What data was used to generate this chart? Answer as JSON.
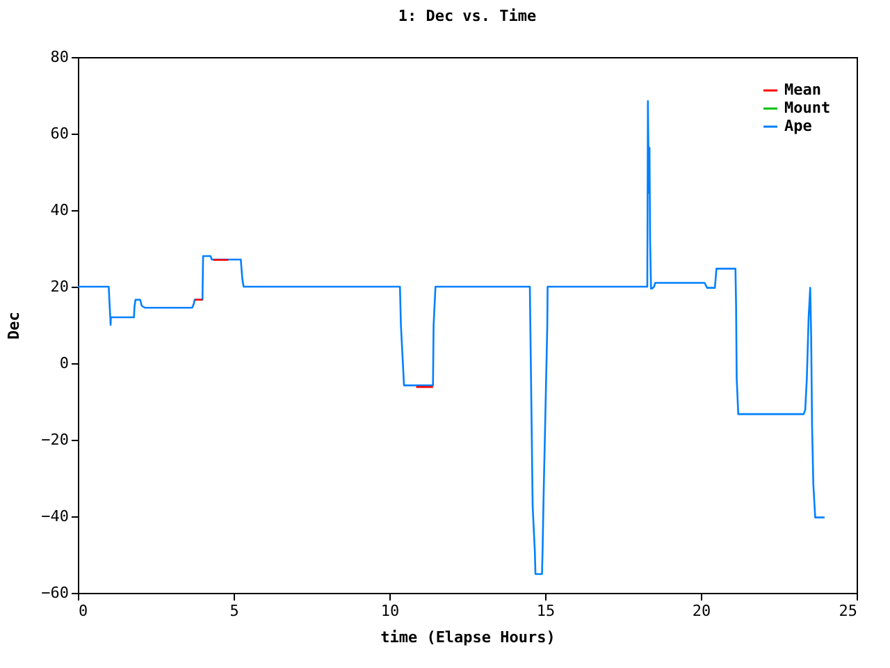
{
  "chart_data": {
    "type": "line",
    "title": "1: Dec vs. Time",
    "xlabel": "time (Elapse Hours)",
    "ylabel": "Dec",
    "xlim": [
      0,
      25
    ],
    "xticks": [
      0,
      5,
      10,
      15,
      20,
      25
    ],
    "ylim": [
      -60,
      80
    ],
    "yticks": [
      -60,
      -40,
      -20,
      0,
      20,
      40,
      60,
      80
    ],
    "grid": false,
    "legend": "top right",
    "marker": "none",
    "line_style": "solid",
    "series": [
      {
        "name": "Mean",
        "color": "#ff0000",
        "x": [
          3.75,
          4.0,
          4.1,
          4.35,
          4.83,
          5.0,
          10.86,
          11.4
        ],
        "values": [
          16.6,
          16.6,
          null,
          27.0,
          27.0,
          null,
          -6.2,
          -6.2
        ]
      },
      {
        "name": "Mount",
        "color": "#00c000"
      },
      {
        "name": "Ape",
        "color": "#0080ff",
        "x": [
          0,
          0.99,
          1.02,
          1.04,
          1.05,
          1.06,
          1.8,
          1.82,
          1.85,
          2.0,
          2.05,
          2.15,
          3.67,
          3.72,
          3.75,
          4.0,
          4.02,
          4.26,
          4.3,
          5.23,
          5.28,
          5.32,
          10.34,
          10.37,
          10.47,
          11.4,
          11.42,
          11.48,
          14.51,
          14.53,
          14.6,
          14.67,
          14.69,
          14.9,
          14.92,
          14.95,
          15.0,
          15.07,
          15.08,
          18.28,
          18.3,
          18.33,
          18.35,
          18.37,
          18.4,
          18.43,
          18.5,
          18.53,
          20.12,
          20.2,
          20.45,
          20.5,
          21.11,
          21.13,
          21.15,
          21.2,
          23.3,
          23.35,
          23.4,
          23.46,
          23.51,
          23.54,
          23.57,
          23.61,
          23.67,
          23.97
        ],
        "values": [
          20,
          20,
          15,
          12,
          10,
          12,
          12,
          15,
          16.6,
          16.6,
          15,
          14.5,
          14.5,
          15.5,
          16.6,
          16.6,
          28,
          28,
          27.1,
          27.1,
          22,
          20,
          20,
          10,
          -5.8,
          -5.8,
          10,
          20,
          20,
          7,
          -37.4,
          -49.2,
          -55.1,
          -55.1,
          -48.4,
          -35,
          -16.5,
          10,
          20,
          20,
          68.5,
          44.5,
          56.3,
          32,
          19.5,
          19.5,
          20,
          21,
          21,
          19.7,
          19.7,
          24.7,
          24.7,
          15.2,
          -3.9,
          -13.3,
          -13.3,
          -12.2,
          -4.3,
          12.1,
          19.7,
          7.3,
          -16.5,
          -31.6,
          -40.3,
          -40.3
        ]
      }
    ]
  }
}
